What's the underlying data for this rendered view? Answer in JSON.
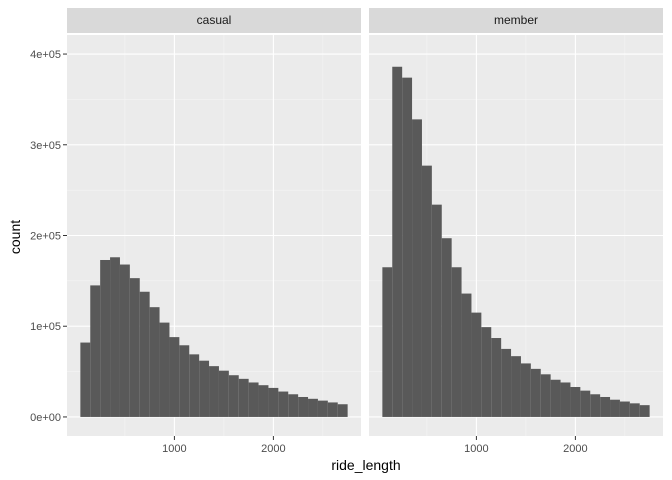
{
  "chart_data": {
    "type": "bar",
    "xlabel": "ride_length",
    "ylabel": "count",
    "xlim": [
      0,
      2800
    ],
    "ylim": [
      0,
      400000
    ],
    "x_ticks": [
      1000,
      2000
    ],
    "x_tick_labels": [
      "1000",
      "2000"
    ],
    "y_ticks": [
      0,
      100000,
      200000,
      300000,
      400000
    ],
    "y_tick_labels": [
      "0e+00",
      "1e+05",
      "2e+05",
      "3e+05",
      "4e+05"
    ],
    "bin_width": 100,
    "bins": [
      100,
      200,
      300,
      400,
      500,
      600,
      700,
      800,
      900,
      1000,
      1100,
      1200,
      1300,
      1400,
      1500,
      1600,
      1700,
      1800,
      1900,
      2000,
      2100,
      2200,
      2300,
      2400,
      2500,
      2600,
      2700
    ],
    "grid": true,
    "panels": [
      {
        "name": "casual",
        "values": [
          82000,
          145000,
          173000,
          176000,
          168000,
          153000,
          138000,
          121000,
          104000,
          88000,
          79000,
          69000,
          62000,
          56000,
          51000,
          46000,
          42000,
          38000,
          35000,
          32000,
          28000,
          25000,
          22000,
          20000,
          18000,
          16000,
          14000
        ]
      },
      {
        "name": "member",
        "values": [
          165000,
          386000,
          374000,
          328000,
          277000,
          234000,
          197000,
          165000,
          136000,
          115000,
          99000,
          87000,
          75000,
          67000,
          59000,
          53000,
          47000,
          41000,
          38000,
          33000,
          29000,
          25000,
          22000,
          19000,
          17000,
          15000,
          13000
        ]
      }
    ],
    "colors": {
      "bar": "#595959",
      "panel_bg": "#ebebeb",
      "grid_major": "#ffffff",
      "strip_bg": "#d9d9d9"
    }
  }
}
